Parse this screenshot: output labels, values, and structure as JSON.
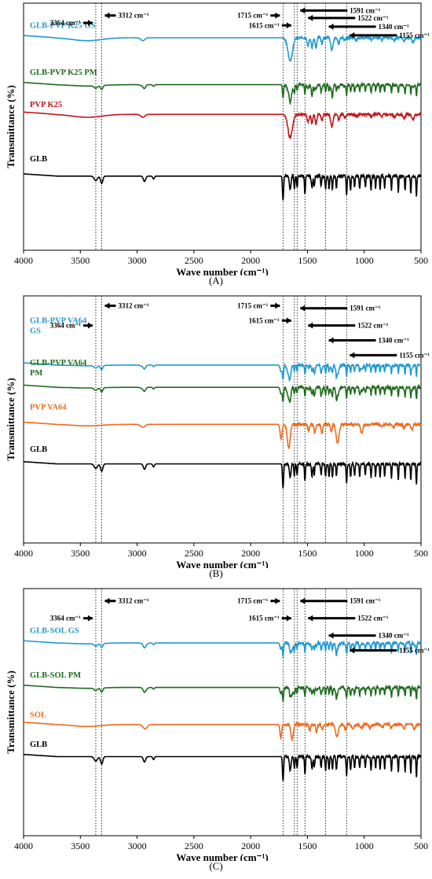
{
  "chart_data": [
    {
      "type": "line",
      "panel_label": "(A)",
      "xlabel": "Wave number (cm⁻¹)",
      "ylabel": "Transmittance (%)",
      "xlim": [
        4000,
        500
      ],
      "xticks": [
        4000,
        3500,
        3000,
        2500,
        2000,
        1500,
        1000,
        500
      ],
      "reference_lines": [
        3364,
        3312,
        1715,
        1615,
        1591,
        1522,
        1340,
        1155
      ],
      "annotations": [
        {
          "text": "3312 cm⁻¹",
          "wn": 3312,
          "dir": "right",
          "row": 0.05
        },
        {
          "text": "3364 cm⁻¹",
          "wn": 3364,
          "dir": "left",
          "row": 0.08
        },
        {
          "text": "1715 cm⁻¹",
          "wn": 1715,
          "dir": "left",
          "row": 0.05
        },
        {
          "text": "1615 cm⁻¹",
          "wn": 1615,
          "dir": "left",
          "row": 0.09
        },
        {
          "text": "1591 cm⁻¹",
          "wn": 1591,
          "dir": "right",
          "row": 0.03
        },
        {
          "text": "1522 cm⁻¹",
          "wn": 1522,
          "dir": "right",
          "row": 0.06
        },
        {
          "text": "1340 cm⁻¹",
          "wn": 1340,
          "dir": "right",
          "row": 0.095
        },
        {
          "text": "1155 cm⁻¹",
          "wn": 1155,
          "dir": "right",
          "row": 0.13
        }
      ],
      "series": [
        {
          "name": "GLB-PVP K25 GS",
          "color": "#1f9ad0",
          "profile": "pvp",
          "label_row": 0.1,
          "baseline": 0.14
        },
        {
          "name": "GLB-PVP K25 PM",
          "color": "#1e6b1e",
          "profile": "pvpmix",
          "label_row": 0.29,
          "baseline": 0.33
        },
        {
          "name": "PVP K25",
          "color": "#c2141b",
          "profile": "pvp",
          "label_row": 0.42,
          "baseline": 0.45
        },
        {
          "name": "GLB",
          "color": "#000000",
          "profile": "glb",
          "label_row": 0.64,
          "baseline": 0.7
        }
      ]
    },
    {
      "type": "line",
      "panel_label": "(B)",
      "xlabel": "Wave number (cm⁻¹)",
      "ylabel": "Transmittance (%)",
      "xlim": [
        4000,
        500
      ],
      "xticks": [
        4000,
        3500,
        3000,
        2500,
        2000,
        1500,
        1000,
        500
      ],
      "reference_lines": [
        3364,
        3312,
        1715,
        1615,
        1591,
        1522,
        1340,
        1155
      ],
      "annotations": [
        {
          "text": "3312 cm⁻¹",
          "wn": 3312,
          "dir": "right",
          "row": 0.04
        },
        {
          "text": "3364 cm⁻¹",
          "wn": 3364,
          "dir": "left",
          "row": 0.12
        },
        {
          "text": "1715 cm⁻¹",
          "wn": 1715,
          "dir": "left",
          "row": 0.04
        },
        {
          "text": "1615 cm⁻¹",
          "wn": 1615,
          "dir": "left",
          "row": 0.1
        },
        {
          "text": "1591 cm⁻¹",
          "wn": 1591,
          "dir": "right",
          "row": 0.05
        },
        {
          "text": "1522 cm⁻¹",
          "wn": 1522,
          "dir": "right",
          "row": 0.12
        },
        {
          "text": "1340 cm⁻¹",
          "wn": 1340,
          "dir": "right",
          "row": 0.18
        },
        {
          "text": "1155 cm⁻¹",
          "wn": 1155,
          "dir": "right",
          "row": 0.24
        }
      ],
      "series": [
        {
          "name": "GLB-PVP VA64 GS",
          "label_lines": [
            "GLB-PVP VA64",
            "GS"
          ],
          "color": "#1f9ad0",
          "profile": "va64mix",
          "label_row": 0.11,
          "baseline": 0.28
        },
        {
          "name": "GLB-PVP VA64 PM",
          "label_lines": [
            "GLB-PVP VA64",
            "PM"
          ],
          "color": "#1e6b1e",
          "profile": "va64mix",
          "label_row": 0.28,
          "baseline": 0.37
        },
        {
          "name": "PVP VA64",
          "label_lines": [
            "PVP VA64"
          ],
          "color": "#ee6a1e",
          "profile": "va64",
          "label_row": 0.46,
          "baseline": 0.52
        },
        {
          "name": "GLB",
          "label_lines": [
            "GLB"
          ],
          "color": "#000000",
          "profile": "glb",
          "label_row": 0.63,
          "baseline": 0.68
        }
      ]
    },
    {
      "type": "line",
      "panel_label": "(C)",
      "xlabel": "Wave number (cm⁻¹)",
      "ylabel": "Transmittance (%)",
      "xlim": [
        4000,
        500
      ],
      "xticks": [
        4000,
        3500,
        3000,
        2500,
        2000,
        1500,
        1000,
        500
      ],
      "reference_lines": [
        3364,
        3312,
        1715,
        1615,
        1591,
        1522,
        1340,
        1155
      ],
      "annotations": [
        {
          "text": "3312 cm⁻¹",
          "wn": 3312,
          "dir": "right",
          "row": 0.05
        },
        {
          "text": "3364 cm⁻¹",
          "wn": 3364,
          "dir": "left",
          "row": 0.12
        },
        {
          "text": "1715 cm⁻¹",
          "wn": 1715,
          "dir": "left",
          "row": 0.05
        },
        {
          "text": "1615 cm⁻¹",
          "wn": 1615,
          "dir": "left",
          "row": 0.12
        },
        {
          "text": "1591 cm⁻¹",
          "wn": 1591,
          "dir": "right",
          "row": 0.05
        },
        {
          "text": "1522 cm⁻¹",
          "wn": 1522,
          "dir": "right",
          "row": 0.12
        },
        {
          "text": "1340 cm⁻¹",
          "wn": 1340,
          "dir": "right",
          "row": 0.19
        },
        {
          "text": "1155 cm⁻¹",
          "wn": 1155,
          "dir": "right",
          "row": 0.25
        }
      ],
      "series": [
        {
          "name": "GLB-SOL GS",
          "color": "#1f9ad0",
          "profile": "solmix",
          "label_row": 0.18,
          "baseline": 0.22
        },
        {
          "name": "GLB-SOL PM",
          "color": "#1e6b1e",
          "profile": "solmix",
          "label_row": 0.36,
          "baseline": 0.4
        },
        {
          "name": "SOL",
          "color": "#ee6a1e",
          "profile": "sol",
          "label_row": 0.52,
          "baseline": 0.55
        },
        {
          "name": "GLB",
          "color": "#000000",
          "profile": "glb",
          "label_row": 0.64,
          "baseline": 0.68
        }
      ]
    }
  ]
}
